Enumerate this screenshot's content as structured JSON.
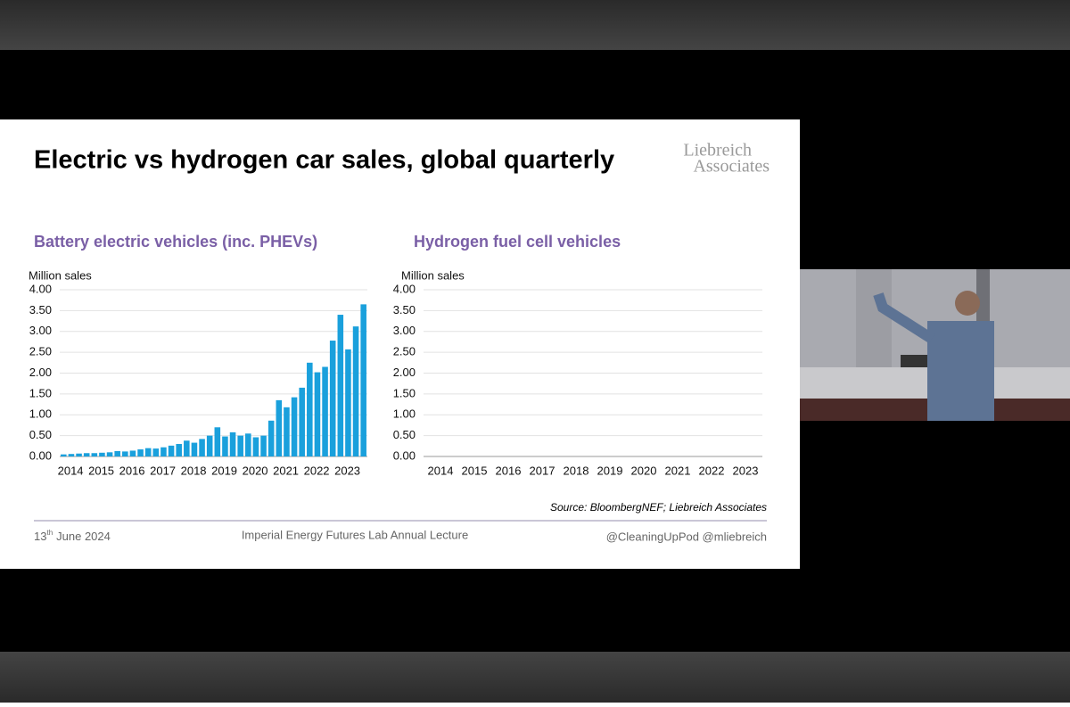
{
  "slide": {
    "title": "Electric vs hydrogen car sales, global quarterly",
    "logo": [
      "Liebreich",
      "Associates"
    ],
    "source": "Source: BloombergNEF; Liebreich Associates",
    "date": {
      "day": "13",
      "suffix": "th",
      "rest": "June 2024"
    },
    "event": "Imperial Energy Futures Lab Annual Lecture",
    "handles": "@CleaningUpPod @mliebreich"
  },
  "chart_data": [
    {
      "type": "bar",
      "title": "Battery electric vehicles (inc. PHEVs)",
      "y_label": "Million sales",
      "color": "#1aa0dc",
      "grid": true,
      "categories": [
        "2014",
        null,
        null,
        null,
        "2015",
        null,
        null,
        null,
        "2016",
        null,
        null,
        null,
        "2017",
        null,
        null,
        null,
        "2018",
        null,
        null,
        null,
        "2019",
        null,
        null,
        null,
        "2020",
        null,
        null,
        null,
        "2021",
        null,
        null,
        null,
        "2022",
        null,
        null,
        null,
        "2023",
        null,
        null,
        null
      ],
      "values": [
        0.05,
        0.06,
        0.07,
        0.08,
        0.08,
        0.09,
        0.1,
        0.13,
        0.12,
        0.14,
        0.17,
        0.2,
        0.19,
        0.22,
        0.26,
        0.3,
        0.38,
        0.33,
        0.42,
        0.5,
        0.7,
        0.48,
        0.58,
        0.5,
        0.55,
        0.46,
        0.5,
        0.86,
        1.35,
        1.18,
        1.42,
        1.65,
        2.25,
        2.02,
        2.15,
        2.78,
        3.4,
        2.57,
        3.12,
        3.65
      ],
      "ylim": [
        0,
        4
      ],
      "yticks": [
        {
          "value": 0,
          "label": "0.00"
        },
        {
          "value": 0.5,
          "label": "0.50"
        },
        {
          "value": 1,
          "label": "1.00"
        },
        {
          "value": 1.5,
          "label": "1.50"
        },
        {
          "value": 2,
          "label": "2.00"
        },
        {
          "value": 2.5,
          "label": "2.50"
        },
        {
          "value": 3,
          "label": "3.00"
        },
        {
          "value": 3.5,
          "label": "3.50"
        },
        {
          "value": 4,
          "label": "4.00"
        }
      ]
    },
    {
      "type": "bar",
      "title": "Hydrogen fuel cell vehicles",
      "y_label": "Million sales",
      "color": "#1aa0dc",
      "grid": true,
      "categories": [
        "2014",
        "2015",
        "2016",
        "2017",
        "2018",
        "2019",
        "2020",
        "2021",
        "2022",
        "2023"
      ],
      "ylim": [
        0,
        4
      ],
      "yticks": [
        {
          "value": 0,
          "label": "0.00"
        },
        {
          "value": 0.5,
          "label": "0.50"
        },
        {
          "value": 1,
          "label": "1.00"
        },
        {
          "value": 1.5,
          "label": "1.50"
        },
        {
          "value": 2,
          "label": "2.00"
        },
        {
          "value": 2.5,
          "label": "2.50"
        },
        {
          "value": 3,
          "label": "3.00"
        },
        {
          "value": 3.5,
          "label": "3.50"
        },
        {
          "value": 4,
          "label": "4.00"
        }
      ]
    }
  ]
}
